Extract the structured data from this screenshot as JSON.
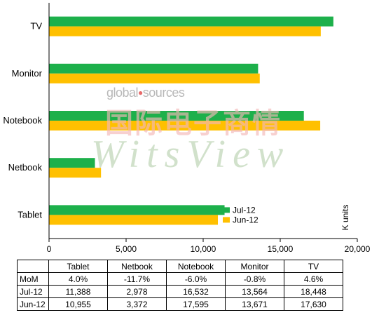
{
  "chart_data": {
    "type": "bar",
    "orientation": "horizontal",
    "categories": [
      "TV",
      "Monitor",
      "Notebook",
      "Netbook",
      "Tablet"
    ],
    "series": [
      {
        "name": "Jul-12",
        "color": "#1db04b",
        "values": [
          18448,
          13564,
          16532,
          2978,
          11388
        ]
      },
      {
        "name": "Jun-12",
        "color": "#ffc000",
        "values": [
          17630,
          13671,
          17595,
          3372,
          10955
        ]
      }
    ],
    "xlim": [
      0,
      20000
    ],
    "xticks": [
      "0",
      "5,000",
      "10,000",
      "15,000",
      "20,000"
    ],
    "unit_label": "K units",
    "legend_position": "bottom-right",
    "grid": false
  },
  "watermark": {
    "global_sources": "global sources",
    "chinese": "国际电子商情",
    "brand": "WitsView"
  },
  "table": {
    "columns": [
      "Tablet",
      "Netbook",
      "Notebook",
      "Monitor",
      "TV"
    ],
    "rows": [
      {
        "label": "MoM",
        "cells": [
          "4.0%",
          "-11.7%",
          "-6.0%",
          "-0.8%",
          "4.6%"
        ]
      },
      {
        "label": "Jul-12",
        "cells": [
          "11,388",
          "2,978",
          "16,532",
          "13,564",
          "18,448"
        ]
      },
      {
        "label": "Jun-12",
        "cells": [
          "10,955",
          "3,372",
          "17,595",
          "13,671",
          "17,630"
        ]
      }
    ]
  }
}
